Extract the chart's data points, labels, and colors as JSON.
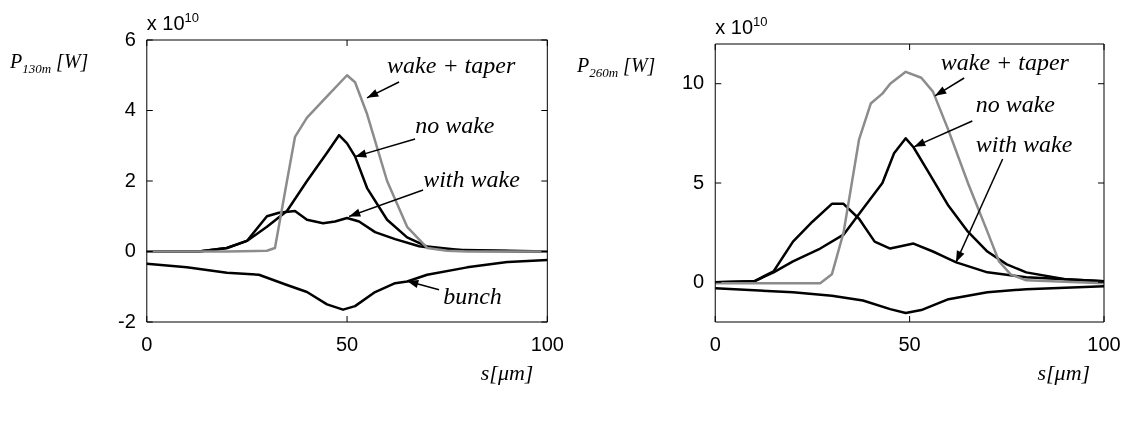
{
  "chart_data": [
    {
      "type": "line",
      "xlabel": "s[μm]",
      "ylabel": "P$_{130m}$ [W]",
      "xlim": [
        0,
        100
      ],
      "xticks": [
        0,
        50,
        100
      ],
      "ylim": [
        -2,
        6
      ],
      "yticks": [
        -2,
        0,
        2,
        4,
        6
      ],
      "grid": false,
      "legend": false,
      "marker": "none",
      "line_style": "solid",
      "annotations": [
        "x 10$^{10}$",
        {
          "text": "wake + taper",
          "x": 55,
          "y": 4.35
        },
        {
          "text": "no wake",
          "x": 52,
          "y": 2.7
        },
        {
          "text": "with wake",
          "x": 50.5,
          "y": 1.0
        },
        {
          "text": "bunch",
          "x": 65,
          "y": -0.85
        }
      ],
      "series": [
        {
          "color": "#8c8c8c",
          "x": [
            0,
            10,
            20,
            30,
            32,
            35,
            37,
            40,
            45,
            50,
            52,
            55,
            60,
            65,
            70,
            75,
            80,
            100
          ],
          "values": [
            0,
            0,
            0,
            0.02,
            0.1,
            2.0,
            3.25,
            3.8,
            4.4,
            5.0,
            4.8,
            3.9,
            2.0,
            0.7,
            0.1,
            0.02,
            0,
            0
          ]
        },
        {
          "color": "#000000",
          "x": [
            0,
            13,
            20,
            25,
            30,
            35,
            40,
            45,
            48,
            50,
            52,
            55,
            60,
            65,
            70,
            80,
            100
          ],
          "values": [
            0,
            0,
            0.1,
            0.3,
            0.7,
            1.15,
            2.0,
            2.8,
            3.3,
            3.07,
            2.7,
            1.8,
            0.9,
            0.4,
            0.14,
            0.02,
            0
          ]
        },
        {
          "color": "#000000",
          "x": [
            0,
            13,
            20,
            25,
            30,
            33,
            37,
            40,
            44,
            47,
            50,
            53,
            57,
            62,
            68,
            75,
            100
          ],
          "values": [
            0,
            0,
            0.1,
            0.3,
            1.0,
            1.1,
            1.15,
            0.9,
            0.8,
            0.85,
            0.95,
            0.85,
            0.55,
            0.35,
            0.15,
            0.05,
            0
          ]
        },
        {
          "color": "#000000",
          "x": [
            0,
            10,
            20,
            28,
            35,
            40,
            45,
            49,
            52,
            57,
            62,
            65,
            70,
            80,
            90,
            100
          ],
          "values": [
            -0.35,
            -0.45,
            -0.6,
            -0.66,
            -0.95,
            -1.15,
            -1.5,
            -1.65,
            -1.55,
            -1.15,
            -0.9,
            -0.85,
            -0.66,
            -0.45,
            -0.3,
            -0.24
          ]
        }
      ]
    },
    {
      "type": "line",
      "xlabel": "s[μm]",
      "ylabel": "P$_{260m}$ [W]",
      "xlim": [
        0,
        100
      ],
      "xticks": [
        0,
        50,
        100
      ],
      "ylim": [
        -2,
        12
      ],
      "yticks": [
        0,
        5,
        10
      ],
      "grid": false,
      "legend": false,
      "marker": "none",
      "line_style": "solid",
      "annotations": [
        "x 10$^{10}$",
        {
          "text": "wake + taper",
          "x": 56.5,
          "y": 9.4
        },
        {
          "text": "no wake",
          "x": 51,
          "y": 6.8
        },
        {
          "text": "with wake",
          "x": 62,
          "y": 1.0
        }
      ],
      "series": [
        {
          "color": "#8c8c8c",
          "x": [
            0,
            10,
            20,
            27,
            30,
            33,
            35,
            37,
            40,
            43,
            45,
            49,
            53,
            56,
            60,
            65,
            70,
            73,
            76,
            80,
            100
          ],
          "values": [
            -0.05,
            -0.05,
            -0.05,
            -0.05,
            0.4,
            2.5,
            4.85,
            7.2,
            9.0,
            9.5,
            10.0,
            10.6,
            10.3,
            9.6,
            7.65,
            5.0,
            2.55,
            1.05,
            0.4,
            0.1,
            -0.05
          ]
        },
        {
          "color": "#000000",
          "x": [
            0,
            10,
            15,
            20,
            27,
            33,
            38,
            43,
            46,
            49,
            51,
            55,
            60,
            65,
            70,
            75,
            80,
            90,
            100
          ],
          "values": [
            0,
            0.05,
            0.5,
            1.05,
            1.7,
            2.4,
            3.7,
            5.0,
            6.5,
            7.25,
            6.8,
            5.5,
            3.85,
            2.55,
            1.55,
            0.9,
            0.5,
            0.15,
            0.05
          ]
        },
        {
          "color": "#000000",
          "x": [
            0,
            10,
            15,
            20,
            25,
            30,
            33,
            37,
            41,
            45,
            51,
            56,
            62,
            70,
            80,
            100
          ],
          "values": [
            0,
            0.05,
            0.55,
            2.05,
            3.05,
            3.95,
            3.95,
            3.2,
            2.05,
            1.7,
            1.95,
            1.55,
            1.0,
            0.5,
            0.25,
            0.05
          ]
        },
        {
          "color": "#000000",
          "x": [
            0,
            20,
            30,
            38,
            45,
            49,
            53,
            60,
            70,
            80,
            100
          ],
          "values": [
            -0.3,
            -0.5,
            -0.68,
            -0.92,
            -1.35,
            -1.55,
            -1.4,
            -0.85,
            -0.5,
            -0.35,
            -0.2
          ]
        }
      ]
    }
  ]
}
